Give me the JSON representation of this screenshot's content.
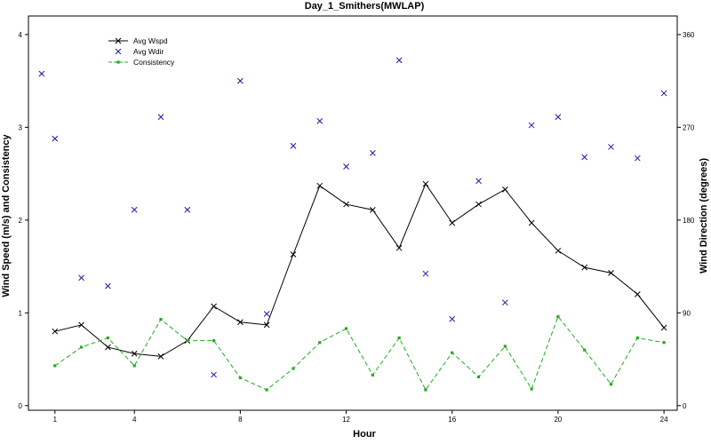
{
  "chart_data": {
    "type": "line",
    "title": "Day_1_Smithers(MWLAP)",
    "xlabel": "Hour",
    "ylabel_left": "Wind Speed (m/s) and Consistency",
    "ylabel_right": "Wind Direction (degrees)",
    "xlim": [
      0,
      24.5
    ],
    "ylim_left": [
      -0.05,
      4.2
    ],
    "ylim_right": [
      0,
      360
    ],
    "x_ticks": [
      1,
      4,
      8,
      12,
      16,
      20,
      24
    ],
    "y_ticks_left": [
      0,
      1,
      2,
      3,
      4
    ],
    "y_ticks_right": [
      0,
      90,
      180,
      270,
      360
    ],
    "legend_position": "top-left",
    "series": [
      {
        "name": "Avg Wspd",
        "axis": "left",
        "style": "line",
        "color": "#000000",
        "marker": "x",
        "x": [
          1,
          2,
          3,
          4,
          5,
          6,
          7,
          8,
          9,
          10,
          11,
          12,
          13,
          14,
          15,
          16,
          17,
          18,
          19,
          20,
          21,
          22,
          23,
          24
        ],
        "y": [
          0.8,
          0.87,
          0.63,
          0.56,
          0.53,
          0.7,
          1.07,
          0.9,
          0.87,
          1.63,
          2.37,
          2.17,
          2.11,
          1.7,
          2.39,
          1.97,
          2.17,
          2.33,
          1.97,
          1.67,
          1.49,
          1.43,
          1.2,
          0.84
        ]
      },
      {
        "name": "Avg Wdir",
        "axis": "right",
        "style": "points",
        "color": "#1a1aa6",
        "marker": "x",
        "x": [
          0.5,
          1,
          2,
          3,
          4,
          5,
          6,
          7,
          8,
          9,
          10,
          11,
          12,
          13,
          14,
          15,
          16,
          17,
          18,
          19,
          20,
          21,
          22,
          23,
          24
        ],
        "y": [
          322,
          259,
          124,
          116,
          190,
          280,
          190,
          30,
          315,
          89,
          252,
          276,
          232,
          245,
          335,
          128,
          84,
          218,
          100,
          272,
          280,
          241,
          251,
          240,
          303
        ]
      },
      {
        "name": "Consistency",
        "axis": "left",
        "style": "dashed",
        "color": "#22aa22",
        "marker": "square",
        "x": [
          1,
          2,
          3,
          4,
          5,
          6,
          7,
          8,
          9,
          10,
          11,
          12,
          13,
          14,
          15,
          16,
          17,
          18,
          19,
          20,
          21,
          22,
          23,
          24
        ],
        "y": [
          0.43,
          0.63,
          0.73,
          0.43,
          0.93,
          0.7,
          0.7,
          0.3,
          0.17,
          0.4,
          0.68,
          0.83,
          0.33,
          0.73,
          0.17,
          0.57,
          0.31,
          0.64,
          0.18,
          0.96,
          0.6,
          0.23,
          0.73,
          0.68
        ]
      }
    ]
  }
}
